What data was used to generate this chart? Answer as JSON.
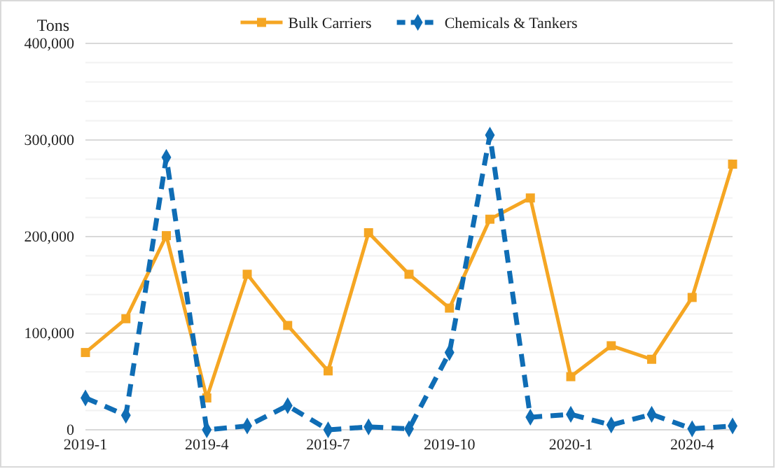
{
  "chart_data": {
    "type": "line",
    "ylabel": "Tons",
    "categories": [
      "2019-1",
      null,
      null,
      "2019-4",
      null,
      null,
      "2019-7",
      null,
      null,
      "2019-10",
      null,
      null,
      "2020-1",
      null,
      null,
      "2020-4",
      null
    ],
    "series": [
      {
        "name": "Bulk Carriers",
        "color": "#f5a623",
        "marker": "square",
        "line_style": "solid",
        "values": [
          80000,
          115000,
          201000,
          33000,
          161000,
          108000,
          61000,
          204000,
          161000,
          126000,
          218000,
          240000,
          55000,
          87000,
          73000,
          137000,
          275000
        ]
      },
      {
        "name": "Chemicals & Tankers",
        "color": "#0f6db5",
        "marker": "diamond",
        "line_style": "dashed",
        "values": [
          33000,
          15000,
          282000,
          0,
          4000,
          25000,
          0,
          3000,
          1000,
          80000,
          305000,
          13000,
          16000,
          5000,
          16000,
          1000,
          4000
        ]
      }
    ],
    "ylim": [
      0,
      400000
    ],
    "yticks": [
      0,
      {
        "value": 20000,
        "label": null
      },
      {
        "value": 40000,
        "label": null
      },
      {
        "value": 60000,
        "label": null
      },
      {
        "value": 80000,
        "label": null
      },
      {
        "value": 100000,
        "label": "100,000"
      },
      {
        "value": 120000,
        "label": null
      },
      {
        "value": 140000,
        "label": null
      },
      {
        "value": 160000,
        "label": null
      },
      {
        "value": 180000,
        "label": null
      },
      {
        "value": 200000,
        "label": "200,000"
      },
      {
        "value": 220000,
        "label": null
      },
      {
        "value": 240000,
        "label": null
      },
      {
        "value": 260000,
        "label": null
      },
      {
        "value": 280000,
        "label": null
      },
      {
        "value": 300000,
        "label": "300,000"
      },
      {
        "value": 320000,
        "label": null
      },
      {
        "value": 340000,
        "label": null
      },
      {
        "value": 360000,
        "label": null
      },
      {
        "value": 380000,
        "label": null
      },
      {
        "value": 400000,
        "label": "400,000"
      }
    ],
    "grid": "y",
    "legend": "top"
  }
}
